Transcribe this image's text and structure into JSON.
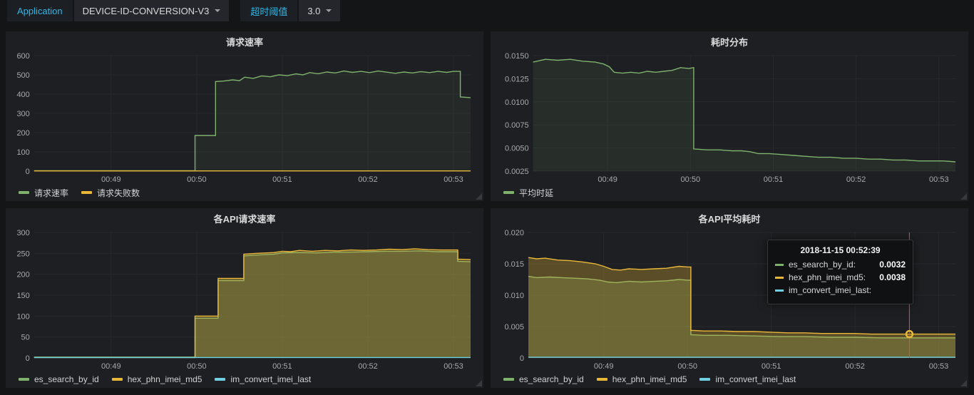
{
  "topbar": {
    "app_label": "Application",
    "app_value": "DEVICE-ID-CONVERSION-V3",
    "threshold_label": "超时阈值",
    "threshold_value": "3.0"
  },
  "panels": [
    {
      "title": "请求速率"
    },
    {
      "title": "耗时分布"
    },
    {
      "title": "各API请求速率"
    },
    {
      "title": "各API平均耗时"
    }
  ],
  "tooltip": {
    "title": "2018-11-15 00:52:39",
    "rows": [
      {
        "label": "es_search_by_id:",
        "value": "0.0032",
        "color": "#7eb26d"
      },
      {
        "label": "hex_phn_imei_md5:",
        "value": "0.0038",
        "color": "#eab839"
      },
      {
        "label": "im_convert_imei_last:",
        "value": "",
        "color": "#6ed0e0"
      }
    ]
  },
  "chart_data": [
    {
      "type": "line",
      "title": "请求速率",
      "xlim": [
        48.1,
        53.2
      ],
      "ylim": [
        0,
        600
      ],
      "xticks": [
        {
          "v": 49,
          "label": "00:49"
        },
        {
          "v": 50,
          "label": "00:50"
        },
        {
          "v": 51,
          "label": "00:51"
        },
        {
          "v": 52,
          "label": "00:52"
        },
        {
          "v": 53,
          "label": "00:53"
        }
      ],
      "yticks": [
        {
          "v": 0,
          "label": "0"
        },
        {
          "v": 100,
          "label": "100"
        },
        {
          "v": 200,
          "label": "200"
        },
        {
          "v": 300,
          "label": "300"
        },
        {
          "v": 400,
          "label": "400"
        },
        {
          "v": 500,
          "label": "500"
        },
        {
          "v": 600,
          "label": "600"
        }
      ],
      "series": [
        {
          "name": "请求速率",
          "color": "#7eb26d",
          "fill": 0.08,
          "points": [
            [
              48.1,
              2
            ],
            [
              49.0,
              2
            ],
            [
              49.5,
              2
            ],
            [
              49.98,
              2
            ],
            [
              49.98,
              185
            ],
            [
              50.22,
              185
            ],
            [
              50.22,
              465
            ],
            [
              50.32,
              468
            ],
            [
              50.42,
              474
            ],
            [
              50.5,
              470
            ],
            [
              50.56,
              488
            ],
            [
              50.66,
              482
            ],
            [
              50.76,
              495
            ],
            [
              50.86,
              490
            ],
            [
              50.96,
              500
            ],
            [
              51.06,
              496
            ],
            [
              51.16,
              505
            ],
            [
              51.24,
              500
            ],
            [
              51.32,
              512
            ],
            [
              51.42,
              506
            ],
            [
              51.52,
              515
            ],
            [
              51.62,
              510
            ],
            [
              51.72,
              520
            ],
            [
              51.82,
              513
            ],
            [
              51.92,
              518
            ],
            [
              52.02,
              512
            ],
            [
              52.12,
              520
            ],
            [
              52.22,
              514
            ],
            [
              52.32,
              508
            ],
            [
              52.42,
              515
            ],
            [
              52.52,
              510
            ],
            [
              52.62,
              517
            ],
            [
              52.72,
              512
            ],
            [
              52.82,
              518
            ],
            [
              52.92,
              513
            ],
            [
              53.0,
              518
            ],
            [
              53.08,
              518
            ],
            [
              53.08,
              385
            ],
            [
              53.2,
              382
            ]
          ]
        },
        {
          "name": "请求失败数",
          "color": "#eab839",
          "fill": 0,
          "points": [
            [
              48.1,
              1
            ],
            [
              53.2,
              1
            ]
          ]
        }
      ]
    },
    {
      "type": "line",
      "title": "耗时分布",
      "xlim": [
        48.1,
        53.2
      ],
      "ylim": [
        0.0025,
        0.015
      ],
      "xticks": [
        {
          "v": 49,
          "label": "00:49"
        },
        {
          "v": 50,
          "label": "00:50"
        },
        {
          "v": 51,
          "label": "00:51"
        },
        {
          "v": 52,
          "label": "00:52"
        },
        {
          "v": 53,
          "label": "00:53"
        }
      ],
      "yticks": [
        {
          "v": 0.0025,
          "label": "0.0025"
        },
        {
          "v": 0.005,
          "label": "0.0050"
        },
        {
          "v": 0.0075,
          "label": "0.0075"
        },
        {
          "v": 0.01,
          "label": "0.0100"
        },
        {
          "v": 0.0125,
          "label": "0.0125"
        },
        {
          "v": 0.015,
          "label": "0.0150"
        }
      ],
      "series": [
        {
          "name": "平均时延",
          "color": "#7eb26d",
          "fill": 0.1,
          "points": [
            [
              48.1,
              0.0143
            ],
            [
              48.25,
              0.0146
            ],
            [
              48.4,
              0.0145
            ],
            [
              48.55,
              0.0146
            ],
            [
              48.7,
              0.0144
            ],
            [
              48.85,
              0.0143
            ],
            [
              48.95,
              0.0141
            ],
            [
              49.02,
              0.0138
            ],
            [
              49.08,
              0.0132
            ],
            [
              49.18,
              0.0131
            ],
            [
              49.28,
              0.0132
            ],
            [
              49.38,
              0.0131
            ],
            [
              49.48,
              0.0133
            ],
            [
              49.58,
              0.0132
            ],
            [
              49.68,
              0.0133
            ],
            [
              49.78,
              0.0134
            ],
            [
              49.88,
              0.0137
            ],
            [
              49.98,
              0.0136
            ],
            [
              50.04,
              0.0137
            ],
            [
              50.04,
              0.0049
            ],
            [
              50.2,
              0.0048
            ],
            [
              50.35,
              0.0048
            ],
            [
              50.5,
              0.0047
            ],
            [
              50.62,
              0.0047
            ],
            [
              50.72,
              0.0046
            ],
            [
              50.82,
              0.0044
            ],
            [
              50.95,
              0.0044
            ],
            [
              51.1,
              0.0043
            ],
            [
              51.25,
              0.0042
            ],
            [
              51.4,
              0.0041
            ],
            [
              51.55,
              0.004
            ],
            [
              51.7,
              0.004
            ],
            [
              51.85,
              0.0039
            ],
            [
              52.0,
              0.0039
            ],
            [
              52.15,
              0.0038
            ],
            [
              52.3,
              0.0038
            ],
            [
              52.45,
              0.0037
            ],
            [
              52.6,
              0.0037
            ],
            [
              52.75,
              0.0036
            ],
            [
              52.9,
              0.0036
            ],
            [
              53.05,
              0.0036
            ],
            [
              53.2,
              0.0035
            ]
          ]
        }
      ]
    },
    {
      "type": "line",
      "title": "各API请求速率",
      "xlim": [
        48.1,
        53.2
      ],
      "ylim": [
        0,
        300
      ],
      "xticks": [
        {
          "v": 49,
          "label": "00:49"
        },
        {
          "v": 50,
          "label": "00:50"
        },
        {
          "v": 51,
          "label": "00:51"
        },
        {
          "v": 52,
          "label": "00:52"
        },
        {
          "v": 53,
          "label": "00:53"
        }
      ],
      "yticks": [
        {
          "v": 0,
          "label": "0"
        },
        {
          "v": 50,
          "label": "50"
        },
        {
          "v": 100,
          "label": "100"
        },
        {
          "v": 150,
          "label": "150"
        },
        {
          "v": 200,
          "label": "200"
        },
        {
          "v": 250,
          "label": "250"
        },
        {
          "v": 300,
          "label": "300"
        }
      ],
      "series": [
        {
          "name": "es_search_by_id",
          "color": "#7eb26d",
          "fill": 0.25,
          "points": [
            [
              48.1,
              2
            ],
            [
              49.98,
              2
            ],
            [
              49.98,
              95
            ],
            [
              50.25,
              95
            ],
            [
              50.25,
              185
            ],
            [
              50.55,
              185
            ],
            [
              50.55,
              244
            ],
            [
              50.7,
              246
            ],
            [
              50.9,
              248
            ],
            [
              51.0,
              251
            ],
            [
              51.2,
              252
            ],
            [
              51.4,
              251
            ],
            [
              51.6,
              253
            ],
            [
              51.8,
              253
            ],
            [
              52.0,
              254
            ],
            [
              52.2,
              255
            ],
            [
              52.4,
              255
            ],
            [
              52.6,
              256
            ],
            [
              52.8,
              254
            ],
            [
              53.0,
              254
            ],
            [
              53.05,
              254
            ],
            [
              53.05,
              231
            ],
            [
              53.2,
              230
            ]
          ]
        },
        {
          "name": "hex_phn_imei_md5",
          "color": "#eab839",
          "fill": 0.3,
          "points": [
            [
              48.1,
              1
            ],
            [
              49.98,
              1
            ],
            [
              49.98,
              100
            ],
            [
              50.25,
              100
            ],
            [
              50.25,
              190
            ],
            [
              50.55,
              190
            ],
            [
              50.55,
              248
            ],
            [
              50.7,
              250
            ],
            [
              50.9,
              252
            ],
            [
              51.0,
              255
            ],
            [
              51.1,
              254
            ],
            [
              51.2,
              257
            ],
            [
              51.35,
              255
            ],
            [
              51.5,
              257
            ],
            [
              51.65,
              256
            ],
            [
              51.8,
              258
            ],
            [
              51.95,
              257
            ],
            [
              52.1,
              258
            ],
            [
              52.25,
              260
            ],
            [
              52.4,
              259
            ],
            [
              52.55,
              261
            ],
            [
              52.7,
              259
            ],
            [
              52.85,
              258
            ],
            [
              53.0,
              258
            ],
            [
              53.05,
              258
            ],
            [
              53.05,
              236
            ],
            [
              53.2,
              235
            ]
          ]
        },
        {
          "name": "im_convert_imei_last",
          "color": "#6ed0e0",
          "fill": 0,
          "points": [
            [
              48.1,
              1
            ],
            [
              53.2,
              1
            ]
          ]
        }
      ]
    },
    {
      "type": "line",
      "title": "各API平均耗时",
      "xlim": [
        48.1,
        53.2
      ],
      "ylim": [
        0,
        0.02
      ],
      "xticks": [
        {
          "v": 49,
          "label": "00:49"
        },
        {
          "v": 50,
          "label": "00:50"
        },
        {
          "v": 51,
          "label": "00:51"
        },
        {
          "v": 52,
          "label": "00:52"
        },
        {
          "v": 53,
          "label": "00:53"
        }
      ],
      "yticks": [
        {
          "v": 0,
          "label": "0"
        },
        {
          "v": 0.005,
          "label": "0.005"
        },
        {
          "v": 0.01,
          "label": "0.010"
        },
        {
          "v": 0.015,
          "label": "0.015"
        },
        {
          "v": 0.02,
          "label": "0.020"
        }
      ],
      "crosshair": {
        "x": 52.65,
        "color": "#ff4444"
      },
      "highlight": {
        "x": 52.65,
        "y": 0.0038,
        "color": "#eab839"
      },
      "series": [
        {
          "name": "es_search_by_id",
          "color": "#7eb26d",
          "fill": 0.25,
          "points": [
            [
              48.1,
              0.013
            ],
            [
              48.2,
              0.0128
            ],
            [
              48.35,
              0.0129
            ],
            [
              48.5,
              0.0128
            ],
            [
              48.65,
              0.0127
            ],
            [
              48.8,
              0.0126
            ],
            [
              48.95,
              0.0124
            ],
            [
              49.05,
              0.0121
            ],
            [
              49.15,
              0.012
            ],
            [
              49.3,
              0.0122
            ],
            [
              49.45,
              0.0121
            ],
            [
              49.6,
              0.0122
            ],
            [
              49.75,
              0.0123
            ],
            [
              49.9,
              0.0125
            ],
            [
              50.0,
              0.0124
            ],
            [
              50.04,
              0.0124
            ],
            [
              50.04,
              0.0037
            ],
            [
              50.2,
              0.0036
            ],
            [
              50.5,
              0.0036
            ],
            [
              50.8,
              0.0035
            ],
            [
              51.1,
              0.0034
            ],
            [
              51.4,
              0.0034
            ],
            [
              51.7,
              0.0033
            ],
            [
              52.0,
              0.0033
            ],
            [
              52.3,
              0.0032
            ],
            [
              52.65,
              0.0032
            ],
            [
              53.0,
              0.0032
            ],
            [
              53.2,
              0.0032
            ]
          ]
        },
        {
          "name": "hex_phn_imei_md5",
          "color": "#eab839",
          "fill": 0.3,
          "points": [
            [
              48.1,
              0.016
            ],
            [
              48.2,
              0.0158
            ],
            [
              48.3,
              0.0159
            ],
            [
              48.45,
              0.0156
            ],
            [
              48.6,
              0.0155
            ],
            [
              48.75,
              0.0153
            ],
            [
              48.9,
              0.015
            ],
            [
              49.0,
              0.0146
            ],
            [
              49.1,
              0.0141
            ],
            [
              49.2,
              0.014
            ],
            [
              49.3,
              0.0142
            ],
            [
              49.45,
              0.0141
            ],
            [
              49.6,
              0.0142
            ],
            [
              49.75,
              0.0143
            ],
            [
              49.9,
              0.0146
            ],
            [
              50.0,
              0.0145
            ],
            [
              50.04,
              0.0145
            ],
            [
              50.04,
              0.0044
            ],
            [
              50.2,
              0.0043
            ],
            [
              50.4,
              0.0043
            ],
            [
              50.6,
              0.0042
            ],
            [
              50.8,
              0.0042
            ],
            [
              51.0,
              0.0041
            ],
            [
              51.2,
              0.004
            ],
            [
              51.4,
              0.004
            ],
            [
              51.6,
              0.0039
            ],
            [
              51.8,
              0.0039
            ],
            [
              52.0,
              0.0039
            ],
            [
              52.2,
              0.0038
            ],
            [
              52.4,
              0.0038
            ],
            [
              52.65,
              0.0038
            ],
            [
              52.9,
              0.0038
            ],
            [
              53.05,
              0.0038
            ],
            [
              53.2,
              0.0038
            ]
          ]
        },
        {
          "name": "im_convert_imei_last",
          "color": "#6ed0e0",
          "fill": 0,
          "points": [
            [
              48.1,
              0.0001
            ],
            [
              53.2,
              0.0001
            ]
          ]
        }
      ]
    }
  ]
}
